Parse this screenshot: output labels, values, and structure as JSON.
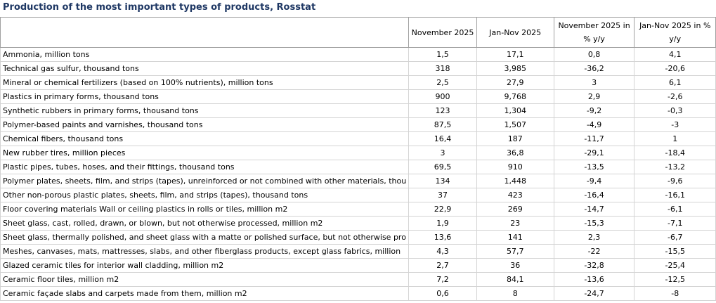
{
  "title": "Production of the most important types of products, Rosstat",
  "table": {
    "headers": [
      "",
      "November 2025",
      "Jan-Nov 2025",
      "November 2025 in % y/y",
      "Jan-Nov 2025 in % y/y"
    ],
    "rows": [
      [
        "Ammonia, million tons",
        "1,5",
        "17,1",
        "0,8",
        "4,1"
      ],
      [
        "Technical gas sulfur, thousand tons",
        "318",
        "3,985",
        "-36,2",
        "-20,6"
      ],
      [
        "Mineral or chemical fertilizers (based on 100% nutrients), million tons",
        "2,5",
        "27,9",
        "3",
        "6,1"
      ],
      [
        "Plastics in primary forms, thousand tons",
        "900",
        "9,768",
        "2,9",
        "-2,6"
      ],
      [
        "Synthetic rubbers in primary forms, thousand tons",
        "123",
        "1,304",
        "-9,2",
        "-0,3"
      ],
      [
        "Polymer-based paints and varnishes, thousand tons",
        "87,5",
        "1,507",
        "-4,9",
        "-3"
      ],
      [
        "Chemical fibers, thousand tons",
        "16,4",
        "187",
        "-11,7",
        "1"
      ],
      [
        "New rubber tires, million pieces",
        "3",
        "36,8",
        "-29,1",
        "-18,4"
      ],
      [
        "Plastic pipes, tubes, hoses, and their fittings, thousand tons",
        "69,5",
        "910",
        "-13,5",
        "-13,2"
      ],
      [
        "Polymer plates, sheets, film, and strips (tapes), unreinforced or not combined with other materials, thou",
        "134",
        "1,448",
        "-9,4",
        "-9,6"
      ],
      [
        "Other non-porous plastic plates, sheets, film, and strips (tapes), thousand tons",
        "37",
        "423",
        "-16,4",
        "-16,1"
      ],
      [
        "Floor covering materials Wall or ceiling plastics in rolls or tiles, million m2",
        "22,9",
        "269",
        "-14,7",
        "-6,1"
      ],
      [
        "Sheet glass, cast, rolled, drawn, or blown, but not otherwise processed, million m2",
        "1,9",
        "23",
        "-15,3",
        "-7,1"
      ],
      [
        "Sheet glass, thermally polished, and sheet glass with a matte or polished surface, but not otherwise pro",
        "13,6",
        "141",
        "2,3",
        "-6,7"
      ],
      [
        "Meshes, canvases, mats, mattresses, slabs, and other fiberglass products, except glass fabrics, million",
        "4,3",
        "57,7",
        "-22",
        "-15,5"
      ],
      [
        "Glazed ceramic tiles for interior wall cladding, million m2",
        "2,7",
        "36",
        "-32,8",
        "-25,4"
      ],
      [
        "Ceramic floor tiles, million m2",
        "7,2",
        "84,1",
        "-13,6",
        "-12,5"
      ],
      [
        "Ceramic façade slabs and carpets made from them, million m2",
        "0,6",
        "8",
        "-24,7",
        "-8"
      ]
    ]
  }
}
